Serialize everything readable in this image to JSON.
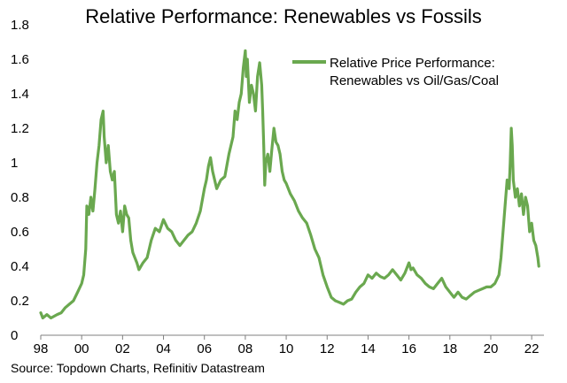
{
  "chart_data": {
    "type": "line",
    "title": "Relative Performance: Renewables vs Fossils",
    "xlabel": "",
    "ylabel": "",
    "xlim": [
      1998,
      2022.6
    ],
    "ylim": [
      0,
      1.8
    ],
    "y_ticks": [
      {
        "value": 0,
        "label": "0"
      },
      {
        "value": 0.2,
        "label": "0.2"
      },
      {
        "value": 0.4,
        "label": "0.4"
      },
      {
        "value": 0.6,
        "label": "0.6"
      },
      {
        "value": 0.8,
        "label": "0.8"
      },
      {
        "value": 1.0,
        "label": "1"
      },
      {
        "value": 1.2,
        "label": "1.2"
      },
      {
        "value": 1.4,
        "label": "1.4"
      },
      {
        "value": 1.6,
        "label": "1.6"
      },
      {
        "value": 1.8,
        "label": "1.8"
      }
    ],
    "x_ticks": [
      {
        "value": 1998,
        "label": "98"
      },
      {
        "value": 2000,
        "label": "00"
      },
      {
        "value": 2002,
        "label": "02"
      },
      {
        "value": 2004,
        "label": "04"
      },
      {
        "value": 2006,
        "label": "06"
      },
      {
        "value": 2008,
        "label": "08"
      },
      {
        "value": 2010,
        "label": "10"
      },
      {
        "value": 2012,
        "label": "12"
      },
      {
        "value": 2014,
        "label": "14"
      },
      {
        "value": 2016,
        "label": "16"
      },
      {
        "value": 2018,
        "label": "18"
      },
      {
        "value": 2020,
        "label": "20"
      },
      {
        "value": 2022,
        "label": "22"
      }
    ],
    "legend": {
      "position": "top-right",
      "lines": [
        "Relative Price Performance:",
        "Renewables vs Oil/Gas/Coal"
      ]
    },
    "series": [
      {
        "name": "Relative Price Performance: Renewables vs Oil/Gas/Coal",
        "color": "#6aa84f",
        "points": [
          [
            1998.0,
            0.13
          ],
          [
            1998.1,
            0.1
          ],
          [
            1998.3,
            0.12
          ],
          [
            1998.5,
            0.1
          ],
          [
            1998.8,
            0.12
          ],
          [
            1999.0,
            0.13
          ],
          [
            1999.2,
            0.16
          ],
          [
            1999.4,
            0.18
          ],
          [
            1999.6,
            0.2
          ],
          [
            1999.8,
            0.25
          ],
          [
            2000.0,
            0.3
          ],
          [
            2000.1,
            0.35
          ],
          [
            2000.2,
            0.5
          ],
          [
            2000.25,
            0.75
          ],
          [
            2000.35,
            0.7
          ],
          [
            2000.45,
            0.8
          ],
          [
            2000.55,
            0.72
          ],
          [
            2000.65,
            0.85
          ],
          [
            2000.75,
            1.0
          ],
          [
            2000.85,
            1.1
          ],
          [
            2000.95,
            1.25
          ],
          [
            2001.05,
            1.3
          ],
          [
            2001.1,
            1.15
          ],
          [
            2001.2,
            1.0
          ],
          [
            2001.3,
            1.1
          ],
          [
            2001.4,
            0.95
          ],
          [
            2001.5,
            0.9
          ],
          [
            2001.6,
            0.95
          ],
          [
            2001.7,
            0.7
          ],
          [
            2001.8,
            0.65
          ],
          [
            2001.9,
            0.72
          ],
          [
            2002.0,
            0.6
          ],
          [
            2002.1,
            0.75
          ],
          [
            2002.2,
            0.7
          ],
          [
            2002.3,
            0.68
          ],
          [
            2002.4,
            0.55
          ],
          [
            2002.5,
            0.48
          ],
          [
            2002.6,
            0.45
          ],
          [
            2002.7,
            0.42
          ],
          [
            2002.8,
            0.38
          ],
          [
            2003.0,
            0.42
          ],
          [
            2003.2,
            0.45
          ],
          [
            2003.4,
            0.55
          ],
          [
            2003.6,
            0.62
          ],
          [
            2003.8,
            0.6
          ],
          [
            2004.0,
            0.67
          ],
          [
            2004.2,
            0.62
          ],
          [
            2004.4,
            0.6
          ],
          [
            2004.6,
            0.55
          ],
          [
            2004.8,
            0.52
          ],
          [
            2005.0,
            0.55
          ],
          [
            2005.2,
            0.58
          ],
          [
            2005.4,
            0.6
          ],
          [
            2005.6,
            0.65
          ],
          [
            2005.8,
            0.72
          ],
          [
            2006.0,
            0.85
          ],
          [
            2006.1,
            0.9
          ],
          [
            2006.2,
            0.98
          ],
          [
            2006.3,
            1.03
          ],
          [
            2006.4,
            0.95
          ],
          [
            2006.6,
            0.85
          ],
          [
            2006.8,
            0.9
          ],
          [
            2007.0,
            0.92
          ],
          [
            2007.2,
            1.05
          ],
          [
            2007.4,
            1.15
          ],
          [
            2007.5,
            1.3
          ],
          [
            2007.6,
            1.25
          ],
          [
            2007.7,
            1.35
          ],
          [
            2007.8,
            1.4
          ],
          [
            2007.9,
            1.55
          ],
          [
            2008.0,
            1.65
          ],
          [
            2008.05,
            1.5
          ],
          [
            2008.1,
            1.6
          ],
          [
            2008.2,
            1.35
          ],
          [
            2008.3,
            1.45
          ],
          [
            2008.4,
            1.4
          ],
          [
            2008.5,
            1.3
          ],
          [
            2008.6,
            1.5
          ],
          [
            2008.7,
            1.58
          ],
          [
            2008.8,
            1.45
          ],
          [
            2008.85,
            1.3
          ],
          [
            2008.9,
            1.1
          ],
          [
            2008.95,
            0.87
          ],
          [
            2009.0,
            1.0
          ],
          [
            2009.1,
            1.05
          ],
          [
            2009.2,
            0.95
          ],
          [
            2009.3,
            1.08
          ],
          [
            2009.4,
            1.2
          ],
          [
            2009.5,
            1.12
          ],
          [
            2009.6,
            1.1
          ],
          [
            2009.7,
            1.05
          ],
          [
            2009.8,
            0.95
          ],
          [
            2009.9,
            0.9
          ],
          [
            2010.0,
            0.88
          ],
          [
            2010.2,
            0.82
          ],
          [
            2010.4,
            0.78
          ],
          [
            2010.6,
            0.72
          ],
          [
            2010.8,
            0.68
          ],
          [
            2011.0,
            0.65
          ],
          [
            2011.2,
            0.58
          ],
          [
            2011.4,
            0.5
          ],
          [
            2011.6,
            0.45
          ],
          [
            2011.8,
            0.35
          ],
          [
            2012.0,
            0.28
          ],
          [
            2012.2,
            0.22
          ],
          [
            2012.4,
            0.2
          ],
          [
            2012.6,
            0.19
          ],
          [
            2012.8,
            0.18
          ],
          [
            2013.0,
            0.2
          ],
          [
            2013.2,
            0.21
          ],
          [
            2013.4,
            0.25
          ],
          [
            2013.6,
            0.28
          ],
          [
            2013.8,
            0.3
          ],
          [
            2014.0,
            0.35
          ],
          [
            2014.2,
            0.33
          ],
          [
            2014.4,
            0.36
          ],
          [
            2014.6,
            0.34
          ],
          [
            2014.8,
            0.33
          ],
          [
            2015.0,
            0.35
          ],
          [
            2015.2,
            0.38
          ],
          [
            2015.4,
            0.35
          ],
          [
            2015.6,
            0.32
          ],
          [
            2015.8,
            0.36
          ],
          [
            2016.0,
            0.42
          ],
          [
            2016.1,
            0.38
          ],
          [
            2016.2,
            0.39
          ],
          [
            2016.4,
            0.35
          ],
          [
            2016.6,
            0.33
          ],
          [
            2016.8,
            0.3
          ],
          [
            2017.0,
            0.28
          ],
          [
            2017.2,
            0.27
          ],
          [
            2017.4,
            0.3
          ],
          [
            2017.6,
            0.33
          ],
          [
            2017.8,
            0.28
          ],
          [
            2018.0,
            0.25
          ],
          [
            2018.2,
            0.22
          ],
          [
            2018.4,
            0.25
          ],
          [
            2018.6,
            0.22
          ],
          [
            2018.8,
            0.21
          ],
          [
            2019.0,
            0.23
          ],
          [
            2019.2,
            0.25
          ],
          [
            2019.4,
            0.26
          ],
          [
            2019.6,
            0.27
          ],
          [
            2019.8,
            0.28
          ],
          [
            2020.0,
            0.28
          ],
          [
            2020.2,
            0.3
          ],
          [
            2020.4,
            0.35
          ],
          [
            2020.5,
            0.45
          ],
          [
            2020.6,
            0.6
          ],
          [
            2020.7,
            0.75
          ],
          [
            2020.8,
            0.9
          ],
          [
            2020.9,
            0.85
          ],
          [
            2020.95,
            1.0
          ],
          [
            2021.0,
            1.2
          ],
          [
            2021.05,
            1.1
          ],
          [
            2021.1,
            0.9
          ],
          [
            2021.2,
            0.8
          ],
          [
            2021.3,
            0.85
          ],
          [
            2021.4,
            0.75
          ],
          [
            2021.5,
            0.82
          ],
          [
            2021.6,
            0.7
          ],
          [
            2021.7,
            0.8
          ],
          [
            2021.8,
            0.75
          ],
          [
            2021.9,
            0.6
          ],
          [
            2022.0,
            0.65
          ],
          [
            2022.1,
            0.55
          ],
          [
            2022.2,
            0.52
          ],
          [
            2022.3,
            0.45
          ],
          [
            2022.35,
            0.4
          ]
        ]
      }
    ]
  },
  "source": "Source: Topdown Charts, Refinitiv Datastream"
}
